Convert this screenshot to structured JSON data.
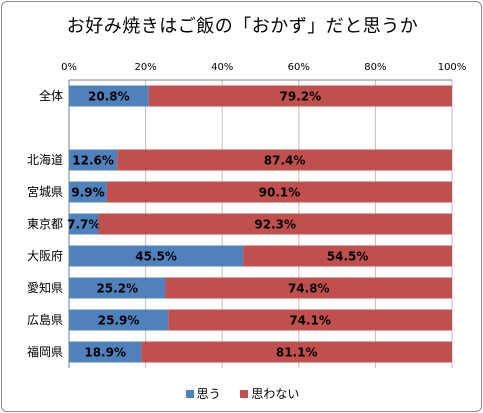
{
  "chart_data": {
    "type": "bar",
    "orientation": "horizontal",
    "stacked": "percent",
    "title": "お好み焼きはご飯の「おかず」だと思うか",
    "categories": [
      "全体",
      "",
      "北海道",
      "宮城県",
      "東京都",
      "大阪府",
      "愛知県",
      "広島県",
      "福岡県"
    ],
    "x_ticks": [
      "0%",
      "20%",
      "40%",
      "60%",
      "80%",
      "100%"
    ],
    "xlim": [
      0,
      100
    ],
    "series": [
      {
        "name": "思う",
        "color": "#4f81bd",
        "values": [
          20.8,
          null,
          12.6,
          9.9,
          7.7,
          45.5,
          25.2,
          25.9,
          18.9
        ],
        "labels": [
          "20.8%",
          "",
          "12.6%",
          "9.9%",
          "7.7%",
          "45.5%",
          "25.2%",
          "25.9%",
          "18.9%"
        ]
      },
      {
        "name": "思わない",
        "color": "#c0504d",
        "values": [
          79.2,
          null,
          87.4,
          90.1,
          92.3,
          54.5,
          74.8,
          74.1,
          81.1
        ],
        "labels": [
          "79.2%",
          "",
          "87.4%",
          "90.1%",
          "92.3%",
          "54.5%",
          "74.8%",
          "74.1%",
          "81.1%"
        ]
      }
    ],
    "legend_position": "bottom",
    "grid": true
  }
}
